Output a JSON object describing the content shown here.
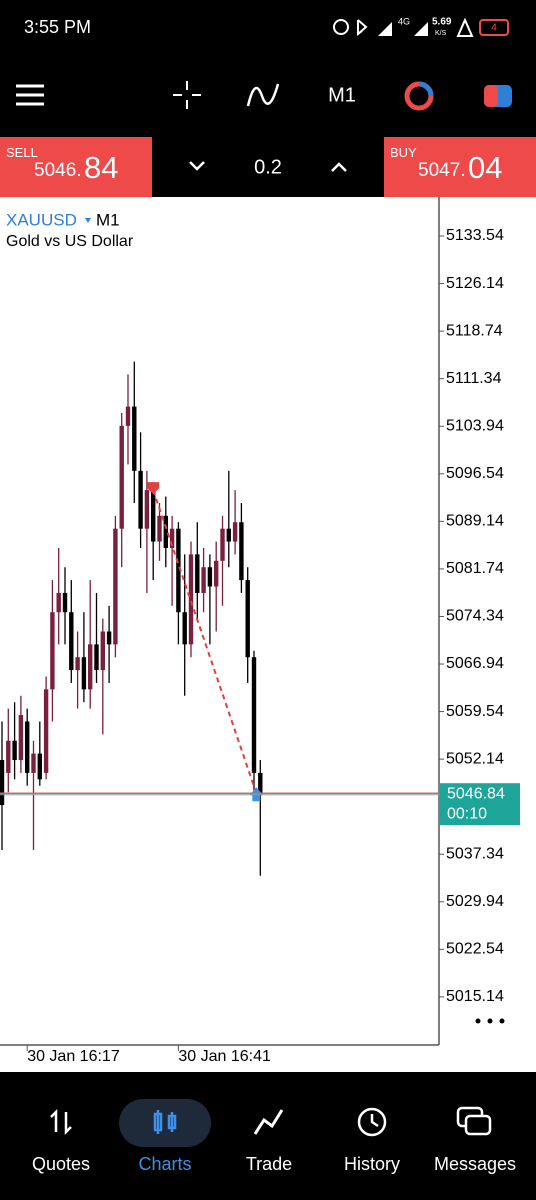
{
  "status_bar": {
    "time": "3:55 PM",
    "network": "4G",
    "speed": "5.69",
    "speed_unit": "K/S",
    "battery": "4"
  },
  "toolbar": {
    "timeframe": "M1"
  },
  "trade_panel": {
    "sell": {
      "label": "SELL",
      "price_small": "5046.",
      "price_big": "84"
    },
    "volume": "0.2",
    "buy": {
      "label": "BUY",
      "price_small": "5047.",
      "price_big": "04"
    }
  },
  "chart_data": {
    "type": "candlestick",
    "symbol": "XAUUSD",
    "timeframe": "M1",
    "description": "Gold vs US Dollar",
    "categories": [
      null,
      null,
      null,
      null,
      "30 Jan 16:17",
      null,
      null,
      null,
      null,
      null,
      null,
      null,
      null,
      null,
      null,
      null,
      null,
      null,
      null,
      null,
      null,
      null,
      null,
      null,
      null,
      null,
      null,
      null,
      "30 Jan 16:41",
      null,
      null,
      null,
      null,
      null,
      null,
      null,
      null,
      null,
      null,
      null,
      null,
      null
    ],
    "open": [
      5052,
      5050,
      5055,
      5052,
      5058,
      5050,
      5053,
      5050,
      5063,
      5075,
      5078,
      5075,
      5066,
      5068,
      5063,
      5070,
      5066,
      5072,
      5070,
      5088,
      5104,
      5107,
      5097,
      5088,
      5094,
      5086,
      5090,
      5085,
      5088,
      5075,
      5070,
      5084,
      5078,
      5082,
      5079,
      5083,
      5088,
      5086,
      5089,
      5080,
      5068,
      5050
    ],
    "high": [
      5058,
      5060,
      5061,
      5062,
      5060,
      5055,
      5058,
      5065,
      5080,
      5085,
      5082,
      5080,
      5072,
      5075,
      5080,
      5078,
      5074,
      5076,
      5090,
      5106,
      5112,
      5114,
      5103,
      5097,
      5095,
      5092,
      5093,
      5090,
      5089,
      5084,
      5086,
      5089,
      5085,
      5084,
      5086,
      5090,
      5097,
      5094,
      5092,
      5082,
      5069,
      5052
    ],
    "low": [
      5038,
      5047,
      5049,
      5050,
      5048,
      5038,
      5048,
      5049,
      5058,
      5070,
      5070,
      5064,
      5060,
      5061,
      5060,
      5064,
      5056,
      5064,
      5068,
      5082,
      5098,
      5092,
      5085,
      5078,
      5080,
      5083,
      5082,
      5076,
      5070,
      5062,
      5068,
      5074,
      5075,
      5070,
      5072,
      5076,
      5082,
      5084,
      5078,
      5064,
      5046,
      5034
    ],
    "close": [
      5045,
      5055,
      5052,
      5059,
      5050,
      5053,
      5049,
      5063,
      5075,
      5078,
      5075,
      5066,
      5068,
      5063,
      5070,
      5066,
      5072,
      5070,
      5088,
      5104,
      5107,
      5097,
      5088,
      5094,
      5086,
      5090,
      5085,
      5088,
      5075,
      5070,
      5084,
      5078,
      5082,
      5079,
      5083,
      5088,
      5086,
      5089,
      5080,
      5068,
      5050,
      5046.84
    ],
    "up_color": "#7a1f3d",
    "down_color": "#000000",
    "ylim": [
      5007.66,
      5139.61
    ],
    "yticks": [
      5133.54,
      5126.14,
      5118.74,
      5111.34,
      5103.94,
      5096.54,
      5089.14,
      5081.74,
      5074.34,
      5066.94,
      5059.54,
      5052.14,
      5037.34,
      5029.94,
      5022.54,
      5015.14
    ],
    "current_price": 5046.84,
    "countdown": "00:10",
    "price_tag_color": "#1ea59a",
    "trade": {
      "entry": 5094,
      "exit": 5046.84
    }
  },
  "nav": {
    "items": [
      "Quotes",
      "Charts",
      "Trade",
      "History",
      "Messages"
    ],
    "active": 1
  }
}
